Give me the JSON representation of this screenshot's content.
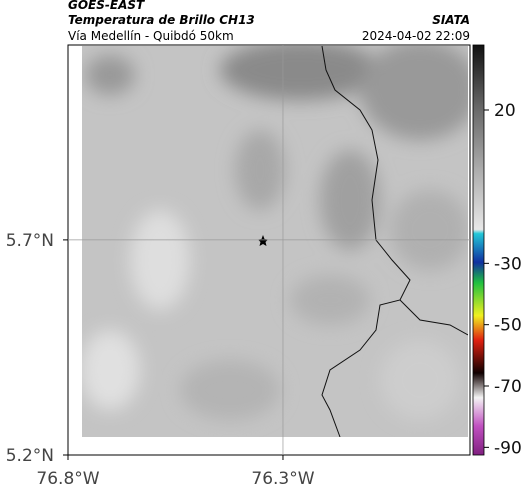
{
  "map": {
    "title": "GOES-EAST",
    "subtitle": "Temperatura de Brillo CH13",
    "source": "SIATA",
    "region": "Vía Medellín - Quibdó 50km",
    "timestamp": "2024-04-02 22:09",
    "xlim": [
      -76.8,
      -75.865
    ],
    "ylim": [
      5.2,
      6.153
    ],
    "xticks": [
      {
        "value": -76.8,
        "label": "76.8°W"
      },
      {
        "value": -76.3,
        "label": "76.3°W"
      }
    ],
    "yticks": [
      {
        "value": 5.2,
        "label": "5.2°N"
      },
      {
        "value": 5.7,
        "label": "5.7°N"
      }
    ],
    "colorbar": {
      "clim": [
        -92.5,
        41.2
      ],
      "ticks": [
        20,
        -30,
        -50,
        -70,
        -90
      ]
    }
  }
}
